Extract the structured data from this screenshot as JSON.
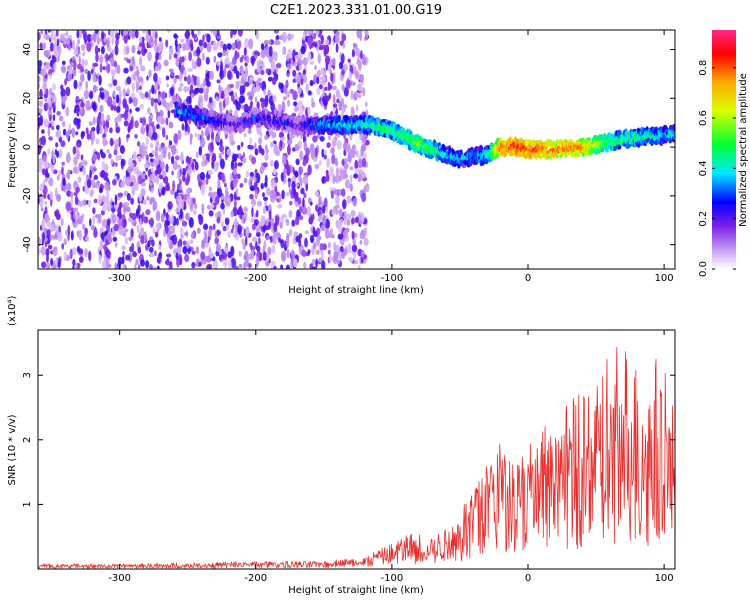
{
  "title": "C2E1.2023.331.01.00.G19",
  "colors": {
    "trace": "#e8312f",
    "axis": "#000000",
    "background": "#ffffff"
  },
  "chart_data": [
    {
      "type": "heatmap",
      "xlabel": "Height of straight line (km)",
      "ylabel": "Frequency (Hz)",
      "xlim": [
        -360,
        108
      ],
      "ylim": [
        -50,
        48
      ],
      "x_ticks": [
        -300,
        -200,
        -100,
        0,
        100
      ],
      "y_ticks": [
        -40,
        -20,
        0,
        20,
        40
      ],
      "colorbar": {
        "label": "Normalized spectral amplitude",
        "range": [
          0,
          0.95
        ],
        "ticks": [
          0.0,
          0.2,
          0.4,
          0.6,
          0.8
        ],
        "colors": [
          "#ffffff",
          "#c79cf2",
          "#7a1fe6",
          "#0000ff",
          "#00e8ff",
          "#00ff33",
          "#d8ff00",
          "#ffaa00",
          "#ff0000",
          "#ff2a88"
        ]
      },
      "ridge": {
        "x": [
          -258,
          -245,
          -230,
          -215,
          -200,
          -185,
          -170,
          -150,
          -130,
          -115,
          -100,
          -90,
          -80,
          -70,
          -60,
          -50,
          -40,
          -30,
          -20,
          -10,
          0,
          20,
          40,
          60,
          80,
          100,
          108
        ],
        "y": [
          15,
          13,
          11,
          9,
          12,
          11,
          9,
          9,
          9,
          9,
          7,
          4,
          1,
          -1,
          -3,
          -5,
          -4,
          -3,
          0,
          0,
          -1,
          -1,
          0,
          2,
          4,
          5,
          5
        ],
        "peak": [
          0.45,
          0.4,
          0.35,
          0.3,
          0.35,
          0.35,
          0.3,
          0.45,
          0.5,
          0.55,
          0.6,
          0.6,
          0.65,
          0.6,
          0.5,
          0.45,
          0.45,
          0.5,
          0.9,
          0.95,
          0.95,
          0.9,
          0.85,
          0.6,
          0.55,
          0.5,
          0.5
        ]
      },
      "noise_region_x": [
        -360,
        -118
      ]
    },
    {
      "type": "line",
      "xlabel": "Height of straight line (km)",
      "ylabel": "SNR (10 * v/v)",
      "y_multiplier": "(x10⁴)",
      "xlim": [
        -360,
        108
      ],
      "ylim": [
        0,
        3.7
      ],
      "x_ticks": [
        -300,
        -200,
        -100,
        0,
        100
      ],
      "y_ticks": [
        1,
        2,
        3
      ],
      "series": [
        {
          "x": [
            -360,
            -300,
            -250,
            -200,
            -150,
            -120,
            -100,
            -90,
            -80,
            -70,
            -60,
            -50,
            -40,
            -30,
            -20,
            -10,
            0,
            10,
            20,
            30,
            40,
            50,
            60,
            70,
            80,
            90,
            95,
            100,
            105,
            108
          ],
          "y": [
            0.05,
            0.05,
            0.05,
            0.07,
            0.08,
            0.12,
            0.25,
            0.35,
            0.35,
            0.3,
            0.4,
            0.55,
            0.9,
            1.1,
            1.3,
            1.35,
            1.3,
            1.3,
            1.45,
            1.5,
            1.6,
            1.6,
            1.7,
            1.75,
            1.7,
            1.65,
            1.6,
            1.5,
            1.4,
            1.3
          ],
          "peak": [
            0.08,
            0.08,
            0.1,
            0.12,
            0.12,
            0.2,
            0.4,
            0.55,
            0.55,
            0.5,
            0.65,
            0.9,
            1.3,
            1.9,
            2.0,
            1.8,
            1.9,
            2.2,
            2.3,
            2.6,
            2.9,
            3.1,
            3.4,
            3.5,
            3.3,
            3.5,
            3.7,
            3.4,
            2.8,
            2.4
          ]
        }
      ]
    }
  ]
}
